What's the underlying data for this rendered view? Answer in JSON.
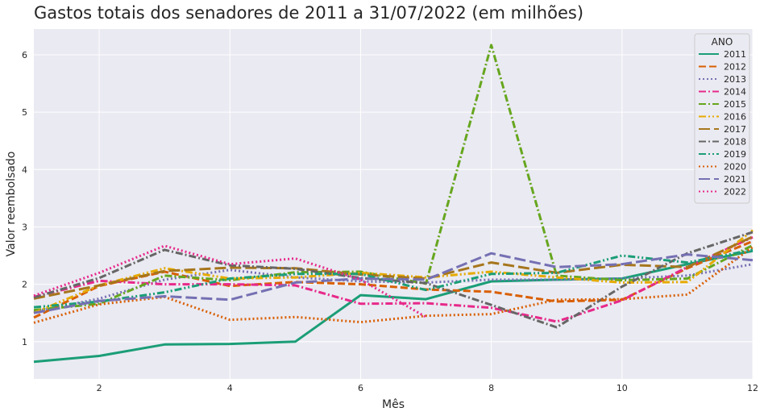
{
  "chart_data": {
    "type": "line",
    "title": "Gastos totais dos senadores de 2011 a 31/07/2022 (em milhões)",
    "xlabel": "Mês",
    "ylabel": "Valor reembolsado",
    "xlim": [
      1,
      12
    ],
    "ylim": [
      0.35,
      6.45
    ],
    "xticks": [
      2,
      4,
      6,
      8,
      10,
      12
    ],
    "yticks": [
      1,
      2,
      3,
      4,
      5,
      6
    ],
    "grid": true,
    "legend": {
      "title": "ANO",
      "placement": "top-right"
    },
    "series": [
      {
        "name": "2011",
        "color": "#1b9e77",
        "dash": "solid",
        "x": [
          1,
          2,
          3,
          4,
          5,
          6,
          7,
          8,
          9,
          10,
          11,
          12
        ],
        "values": [
          0.65,
          0.75,
          0.95,
          0.96,
          1.0,
          1.81,
          1.74,
          2.05,
          2.08,
          2.1,
          2.35,
          2.58
        ]
      },
      {
        "name": "2012",
        "color": "#d95f02",
        "dash": "dashed",
        "x": [
          1,
          2,
          3,
          4,
          5,
          6,
          7,
          8,
          9,
          10,
          11,
          12
        ],
        "values": [
          1.42,
          1.97,
          2.22,
          1.97,
          2.04,
          2.0,
          1.91,
          1.87,
          1.7,
          1.73,
          2.28,
          2.75
        ]
      },
      {
        "name": "2013",
        "color": "#7570b3",
        "dash": "dotted",
        "x": [
          1,
          2,
          3,
          4,
          5,
          6,
          7,
          8,
          9,
          10,
          11,
          12
        ],
        "values": [
          1.52,
          1.75,
          2.08,
          2.25,
          2.12,
          2.05,
          2.03,
          2.08,
          2.08,
          2.1,
          2.15,
          2.35
        ]
      },
      {
        "name": "2014",
        "color": "#e7298a",
        "dash": "dashdot",
        "x": [
          1,
          2,
          3,
          4,
          5,
          6,
          7,
          8,
          9,
          10,
          11,
          12
        ],
        "values": [
          1.78,
          2.06,
          2.0,
          2.0,
          1.98,
          1.66,
          1.67,
          1.59,
          1.35,
          1.72,
          2.3,
          2.82
        ]
      },
      {
        "name": "2015",
        "color": "#66a61e",
        "dash": "dashdot",
        "x": [
          1,
          2,
          3,
          4,
          5,
          6,
          7,
          8,
          9,
          10,
          11,
          12
        ],
        "values": [
          1.55,
          1.66,
          2.15,
          2.07,
          2.21,
          2.22,
          2.01,
          6.17,
          2.15,
          2.07,
          2.1,
          2.68
        ]
      },
      {
        "name": "2016",
        "color": "#e6ab02",
        "dash": "dashdotdot",
        "x": [
          1,
          2,
          3,
          4,
          5,
          6,
          7,
          8,
          9,
          10,
          11,
          12
        ],
        "values": [
          1.5,
          1.98,
          2.28,
          2.1,
          2.12,
          2.2,
          2.12,
          2.22,
          2.12,
          2.03,
          2.04,
          2.94
        ]
      },
      {
        "name": "2017",
        "color": "#a6761d",
        "dash": "longdash",
        "x": [
          1,
          2,
          3,
          4,
          5,
          6,
          7,
          8,
          9,
          10,
          11,
          12
        ],
        "values": [
          1.75,
          1.98,
          2.23,
          2.29,
          2.28,
          2.17,
          2.1,
          2.38,
          2.2,
          2.34,
          2.3,
          2.83
        ]
      },
      {
        "name": "2018",
        "color": "#666666",
        "dash": "dashdot",
        "x": [
          1,
          2,
          3,
          4,
          5,
          6,
          7,
          8,
          9,
          10,
          11,
          12
        ],
        "values": [
          1.77,
          2.11,
          2.6,
          2.33,
          2.27,
          2.11,
          2.02,
          1.64,
          1.25,
          1.96,
          2.54,
          2.91
        ]
      },
      {
        "name": "2019",
        "color": "#1b9e77",
        "dash": "dashdotdot",
        "x": [
          1,
          2,
          3,
          4,
          5,
          6,
          7,
          8,
          9,
          10,
          11,
          12
        ],
        "values": [
          1.6,
          1.7,
          1.86,
          2.1,
          2.18,
          2.18,
          1.9,
          2.18,
          2.2,
          2.5,
          2.38,
          2.6
        ]
      },
      {
        "name": "2020",
        "color": "#d95f02",
        "dash": "dotted",
        "x": [
          1,
          2,
          3,
          4,
          5,
          6,
          7,
          8,
          9,
          10,
          11,
          12
        ],
        "values": [
          1.33,
          1.65,
          1.78,
          1.38,
          1.43,
          1.34,
          1.45,
          1.48,
          1.73,
          1.74,
          1.82,
          2.65
        ]
      },
      {
        "name": "2021",
        "color": "#7570b3",
        "dash": "longdash",
        "x": [
          1,
          2,
          3,
          4,
          5,
          6,
          7,
          8,
          9,
          10,
          11,
          12
        ],
        "values": [
          1.5,
          1.71,
          1.79,
          1.73,
          2.03,
          2.1,
          2.08,
          2.54,
          2.3,
          2.35,
          2.52,
          2.42
        ]
      },
      {
        "name": "2022",
        "color": "#e7298a",
        "dash": "dotted",
        "x": [
          1,
          2,
          3,
          4,
          5,
          6,
          7
        ],
        "values": [
          1.8,
          2.2,
          2.67,
          2.35,
          2.45,
          2.08,
          1.43
        ]
      }
    ]
  }
}
